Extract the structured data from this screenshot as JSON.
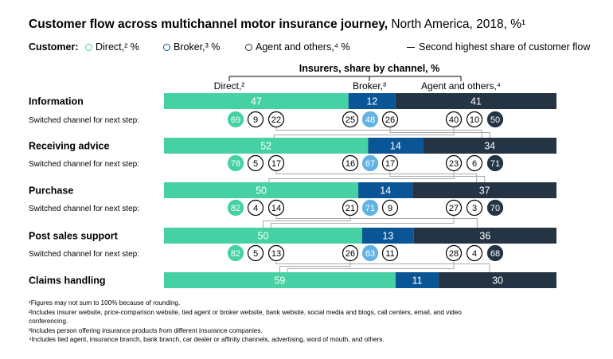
{
  "title_bold": "Customer flow across multichannel motor insurance journey,",
  "title_rest": " North America, 2018, %¹",
  "legend": {
    "label": "Customer:",
    "direct": "Direct,² %",
    "broker": "Broker,³ %",
    "agent": "Agent and others,⁴ %",
    "line": "Second highest share of customer flow"
  },
  "colors": {
    "direct": "#45d1a4",
    "broker": "#0a5596",
    "agent": "#243444",
    "direct_circle": "#45d1a4",
    "broker_circle": "#62b3e3",
    "agent_circle": "#243444",
    "connector": "#a9a9a9"
  },
  "chart_data": {
    "type": "bar",
    "orientation": "horizontal-stacked",
    "header": "Insurers, share by channel, %",
    "channel_labels": [
      "Direct,²",
      "Broker,³",
      "Agent and others,⁴"
    ],
    "steps": [
      "Information",
      "Receiving advice",
      "Purchase",
      "Post sales support",
      "Claims handling"
    ],
    "series": [
      {
        "name": "Direct",
        "values": [
          47,
          52,
          50,
          50,
          59
        ]
      },
      {
        "name": "Broker",
        "values": [
          12,
          14,
          14,
          13,
          11
        ]
      },
      {
        "name": "Agent and others",
        "values": [
          41,
          34,
          37,
          36,
          30
        ]
      }
    ],
    "switch_label": "Switched channel for next step:",
    "switches": [
      {
        "from_step": "Information",
        "direct": [
          69,
          9,
          22
        ],
        "broker": [
          25,
          48,
          26
        ],
        "agent": [
          40,
          10,
          50
        ]
      },
      {
        "from_step": "Receiving advice",
        "direct": [
          78,
          5,
          17
        ],
        "broker": [
          16,
          67,
          17
        ],
        "agent": [
          23,
          6,
          71
        ]
      },
      {
        "from_step": "Purchase",
        "direct": [
          82,
          4,
          14
        ],
        "broker": [
          21,
          71,
          9
        ],
        "agent": [
          27,
          3,
          70
        ]
      },
      {
        "from_step": "Post sales support",
        "direct": [
          82,
          5,
          13
        ],
        "broker": [
          26,
          63,
          11
        ],
        "agent": [
          28,
          4,
          68
        ]
      }
    ],
    "circle_order": [
      "to Direct",
      "to Broker",
      "to Agent and others"
    ]
  },
  "footnotes": [
    "¹Figures may not sum to 100% because of rounding.",
    "²Includes insurer website, price-comparison website, tied agent or broker website, bank website, social media and blogs, call centers, email, and video conferencing.",
    "³Includes person offering insurance products from different insurance companies.",
    "⁴Includes tied agent, insurance branch, bank branch, car dealer or affinity channels, advertising, word of mouth, and others."
  ]
}
